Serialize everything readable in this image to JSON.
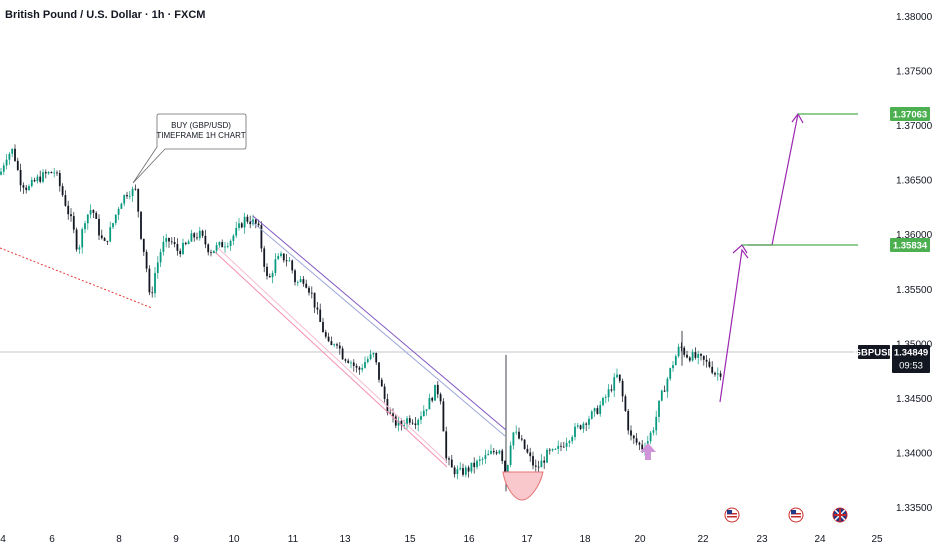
{
  "header": {
    "title": "British Pound / U.S. Dollar · 1h · FXCM"
  },
  "annotation": {
    "line1": "BUY (GBP/USD)",
    "line2": "TIMEFRAME 1H CHART"
  },
  "colors": {
    "up": "#089981",
    "down": "#131722",
    "target": "#4caf50",
    "arrow": "#9c27b0",
    "channel_upper": "#7e57c2",
    "channel_lower": "#f48fb1",
    "support": "#e53935",
    "current_badge": "#131722"
  },
  "icons": [
    "us-flag-icon",
    "us-flag-icon",
    "uk-flag-icon"
  ],
  "chart_data": {
    "type": "candlestick",
    "symbol": "GBPUSD",
    "ylim": [
      1.3325,
      1.3815
    ],
    "y_ticks": [
      1.335,
      1.34,
      1.345,
      1.35,
      1.355,
      1.36,
      1.365,
      1.37,
      1.375,
      1.38
    ],
    "y_tick_labels": [
      "1.33500",
      "1.34000",
      "1.34500",
      "1.35000",
      "1.35500",
      "1.36000",
      "1.36500",
      "1.37000",
      "1.37500",
      "1.38000"
    ],
    "x_tick_labels": [
      "4",
      "6",
      "8",
      "9",
      "10",
      "11",
      "13",
      "15",
      "16",
      "17",
      "18",
      "20",
      "22",
      "23",
      "24",
      "25"
    ],
    "current_price": {
      "label": "GBPUSD",
      "value": "1.34849",
      "countdown": "09:53",
      "price": 1.34849
    },
    "targets": [
      {
        "label": "1.35834",
        "price": 1.35834
      },
      {
        "label": "1.37063",
        "price": 1.37063
      }
    ],
    "price_path": [
      [
        0,
        1.3655
      ],
      [
        6,
        1.3672
      ],
      [
        13,
        1.3678
      ],
      [
        20,
        1.365
      ],
      [
        28,
        1.3642
      ],
      [
        36,
        1.365
      ],
      [
        45,
        1.3655
      ],
      [
        55,
        1.3658
      ],
      [
        65,
        1.363
      ],
      [
        72,
        1.361
      ],
      [
        78,
        1.3585
      ],
      [
        85,
        1.3615
      ],
      [
        92,
        1.3625
      ],
      [
        98,
        1.3605
      ],
      [
        104,
        1.359
      ],
      [
        112,
        1.3608
      ],
      [
        120,
        1.363
      ],
      [
        128,
        1.364
      ],
      [
        136,
        1.364
      ],
      [
        141,
        1.36
      ],
      [
        146,
        1.3575
      ],
      [
        150,
        1.3538
      ],
      [
        155,
        1.3565
      ],
      [
        162,
        1.359
      ],
      [
        170,
        1.3595
      ],
      [
        178,
        1.3585
      ],
      [
        186,
        1.359
      ],
      [
        192,
        1.3598
      ],
      [
        200,
        1.36
      ],
      [
        210,
        1.3585
      ],
      [
        220,
        1.359
      ],
      [
        230,
        1.3595
      ],
      [
        238,
        1.3605
      ],
      [
        245,
        1.3615
      ],
      [
        252,
        1.3612
      ],
      [
        258,
        1.3608
      ],
      [
        263,
        1.358
      ],
      [
        268,
        1.3555
      ],
      [
        275,
        1.3575
      ],
      [
        282,
        1.358
      ],
      [
        290,
        1.3575
      ],
      [
        296,
        1.3555
      ],
      [
        304,
        1.356
      ],
      [
        312,
        1.3545
      ],
      [
        318,
        1.3525
      ],
      [
        324,
        1.351
      ],
      [
        330,
        1.3495
      ],
      [
        336,
        1.3505
      ],
      [
        342,
        1.349
      ],
      [
        350,
        1.3485
      ],
      [
        358,
        1.3475
      ],
      [
        366,
        1.3485
      ],
      [
        374,
        1.349
      ],
      [
        380,
        1.3465
      ],
      [
        386,
        1.3445
      ],
      [
        392,
        1.343
      ],
      [
        400,
        1.3425
      ],
      [
        408,
        1.3432
      ],
      [
        416,
        1.343
      ],
      [
        424,
        1.344
      ],
      [
        430,
        1.3448
      ],
      [
        436,
        1.346
      ],
      [
        441,
        1.345
      ],
      [
        446,
        1.3395
      ],
      [
        452,
        1.3385
      ],
      [
        460,
        1.3382
      ],
      [
        468,
        1.3385
      ],
      [
        476,
        1.339
      ],
      [
        484,
        1.3395
      ],
      [
        492,
        1.34
      ],
      [
        500,
        1.3405
      ],
      [
        506,
        1.338
      ],
      [
        512,
        1.342
      ],
      [
        518,
        1.3415
      ],
      [
        524,
        1.3405
      ],
      [
        530,
        1.3395
      ],
      [
        536,
        1.3385
      ],
      [
        542,
        1.3392
      ],
      [
        548,
        1.34
      ],
      [
        554,
        1.34
      ],
      [
        560,
        1.3405
      ],
      [
        566,
        1.3412
      ],
      [
        572,
        1.3418
      ],
      [
        580,
        1.3425
      ],
      [
        588,
        1.3432
      ],
      [
        596,
        1.3438
      ],
      [
        604,
        1.3448
      ],
      [
        612,
        1.3462
      ],
      [
        618,
        1.3472
      ],
      [
        624,
        1.3445
      ],
      [
        630,
        1.3415
      ],
      [
        636,
        1.341
      ],
      [
        642,
        1.3405
      ],
      [
        648,
        1.3412
      ],
      [
        654,
        1.3425
      ],
      [
        660,
        1.3448
      ],
      [
        668,
        1.347
      ],
      [
        674,
        1.3485
      ],
      [
        680,
        1.3498
      ],
      [
        686,
        1.349
      ],
      [
        694,
        1.3488
      ],
      [
        702,
        1.3485
      ],
      [
        710,
        1.348
      ],
      [
        716,
        1.3472
      ],
      [
        722,
        1.3475
      ]
    ]
  }
}
